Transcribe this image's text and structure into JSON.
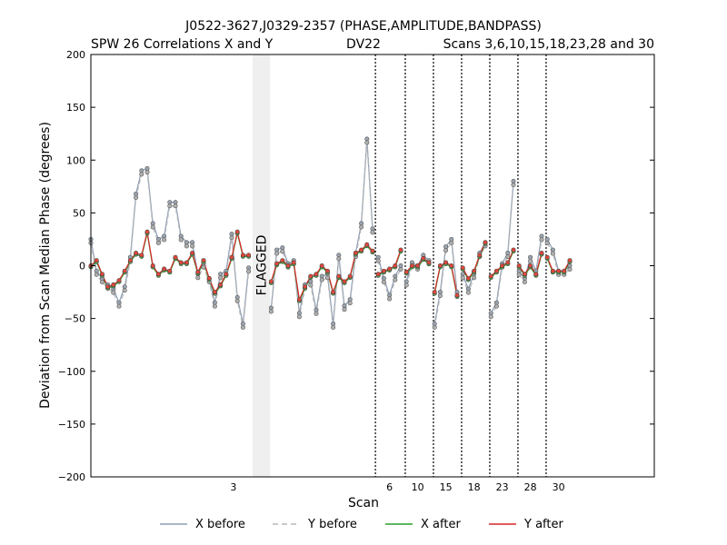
{
  "chart_data": {
    "type": "line",
    "title": "J0522-3627,J0329-2357 (PHASE,AMPLITUDE,BANDPASS)",
    "subtitle_left": "SPW 26 Correlations X and Y",
    "subtitle_center": "DV22",
    "subtitle_right": "Scans 3,6,10,15,18,23,28 and 30",
    "xlabel": "Scan",
    "ylabel": "Deviation from Scan Median Phase (degrees)",
    "ylim": [
      -200,
      200
    ],
    "yticks": [
      -200,
      -150,
      -100,
      -50,
      0,
      50,
      100,
      150,
      200
    ],
    "x_range": [
      0,
      100
    ],
    "grid": false,
    "legend_position": "bottom",
    "flagged_label": "FLAGGED",
    "flagged_region": [
      28.7,
      31.8
    ],
    "scan_ticks": [
      {
        "label": "3",
        "x": 25.3
      },
      {
        "label": "6",
        "x": 53.0
      },
      {
        "label": "10",
        "x": 58.0
      },
      {
        "label": "15",
        "x": 63.0
      },
      {
        "label": "18",
        "x": 68.0
      },
      {
        "label": "23",
        "x": 73.0
      },
      {
        "label": "28",
        "x": 78.0
      },
      {
        "label": "30",
        "x": 83.0
      }
    ],
    "scan_boundaries": [
      50.5,
      55.8,
      60.8,
      65.8,
      70.8,
      75.8,
      80.8
    ],
    "segments": [
      {
        "x": [
          0,
          1,
          2,
          3,
          4,
          5,
          6,
          7,
          8,
          9,
          10,
          11,
          12,
          13,
          14,
          15,
          16,
          17,
          18,
          19,
          20,
          21,
          22,
          23,
          24,
          25,
          26,
          27,
          28
        ],
        "before": [
          25,
          -5,
          -12,
          -18,
          -22,
          -35,
          -20,
          8,
          68,
          90,
          92,
          40,
          25,
          28,
          60,
          60,
          28,
          22,
          22,
          -8,
          2,
          -12,
          -35,
          -8,
          -5,
          30,
          -30,
          -55,
          -2
        ],
        "after": [
          0,
          5,
          -8,
          -20,
          -18,
          -14,
          -5,
          5,
          12,
          10,
          32,
          0,
          -8,
          -3,
          -5,
          8,
          3,
          3,
          12,
          -6,
          5,
          -12,
          -25,
          -18,
          -8,
          8,
          32,
          10,
          10
        ]
      },
      {
        "x": [
          32,
          33,
          34,
          35,
          36,
          37,
          38,
          39,
          40,
          41,
          42,
          43,
          44,
          45,
          46,
          47,
          48,
          49,
          50
        ],
        "before": [
          -40,
          15,
          17,
          2,
          5,
          -45,
          -18,
          -15,
          -42,
          -10,
          -8,
          -55,
          10,
          -38,
          -32,
          12,
          40,
          120,
          35
        ],
        "after": [
          -15,
          2,
          5,
          0,
          3,
          -32,
          -20,
          -10,
          -8,
          0,
          -5,
          -25,
          -10,
          -15,
          -10,
          12,
          15,
          20,
          14
        ]
      },
      {
        "x": [
          51,
          52,
          53,
          54,
          55
        ],
        "before": [
          8,
          -12,
          -28,
          -10,
          0
        ],
        "after": [
          -8,
          -5,
          -3,
          0,
          15
        ]
      },
      {
        "x": [
          56,
          57,
          58,
          59,
          60
        ],
        "before": [
          -15,
          3,
          0,
          10,
          5
        ],
        "after": [
          -6,
          0,
          0,
          7,
          3
        ]
      },
      {
        "x": [
          61,
          62,
          63,
          64,
          65
        ],
        "before": [
          -55,
          -25,
          18,
          25,
          -25
        ],
        "after": [
          -25,
          0,
          3,
          0,
          -28
        ]
      },
      {
        "x": [
          66,
          67,
          68,
          69,
          70
        ],
        "before": [
          -8,
          -22,
          -8,
          12,
          22
        ],
        "after": [
          -2,
          -12,
          -5,
          10,
          22
        ]
      },
      {
        "x": [
          71,
          72,
          73,
          74,
          75
        ],
        "before": [
          -45,
          -35,
          2,
          12,
          80
        ],
        "after": [
          -10,
          -5,
          0,
          3,
          15
        ]
      },
      {
        "x": [
          76,
          77,
          78,
          79,
          80
        ],
        "before": [
          -5,
          -12,
          8,
          -5,
          28
        ],
        "after": [
          0,
          -8,
          0,
          -8,
          12
        ]
      },
      {
        "x": [
          81,
          82,
          83,
          84,
          85
        ],
        "before": [
          25,
          15,
          -5,
          -5,
          0
        ],
        "after": [
          8,
          -5,
          -5,
          -5,
          5
        ]
      }
    ],
    "series": [
      {
        "name": "X before",
        "color": "#8c9db5",
        "style": "solid"
      },
      {
        "name": "Y before",
        "color": "#b8b8b8",
        "style": "dashed"
      },
      {
        "name": "X after",
        "color": "#2ca02c",
        "style": "solid"
      },
      {
        "name": "Y after",
        "color": "#d62728",
        "style": "solid"
      }
    ]
  }
}
